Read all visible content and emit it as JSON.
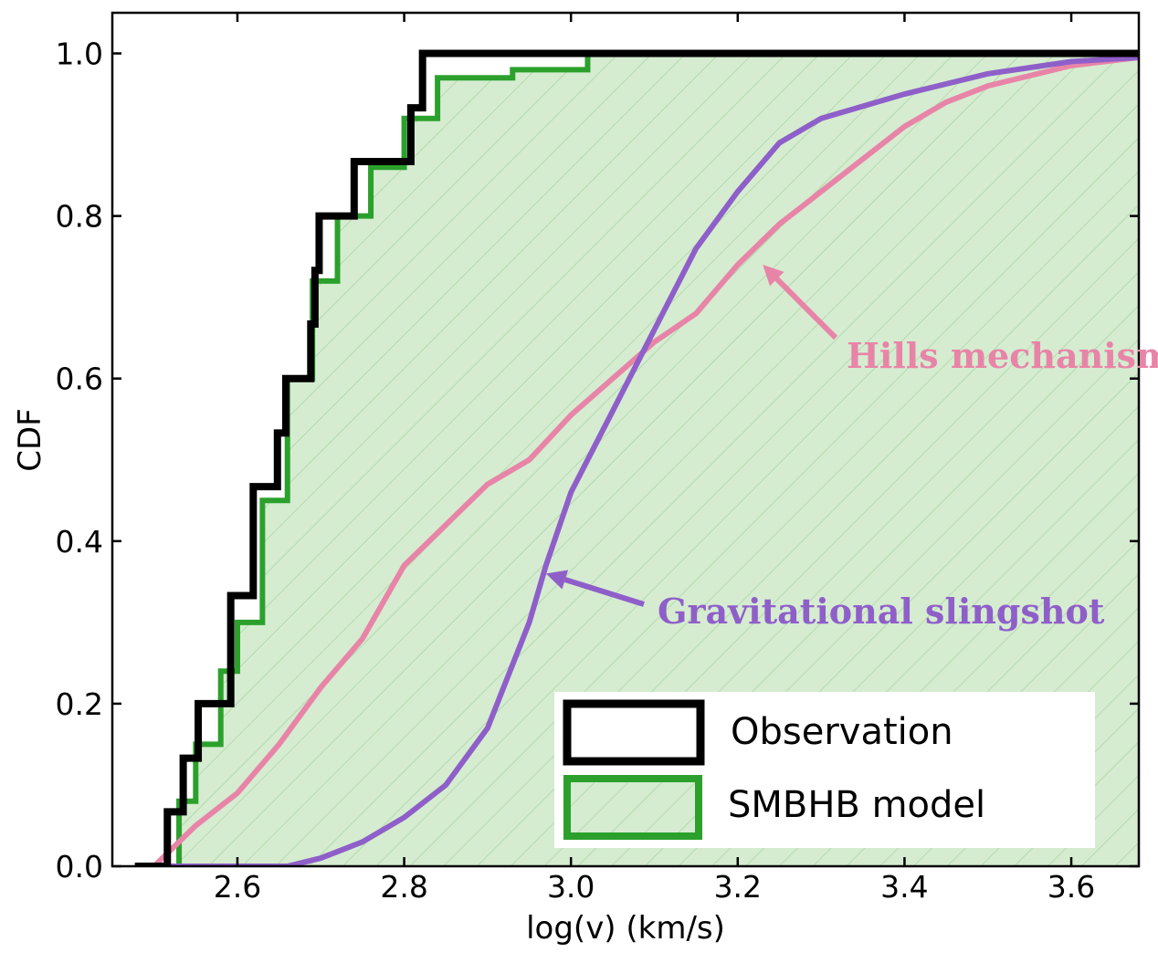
{
  "chart_data": {
    "type": "line",
    "title": "",
    "xlabel": "log(v) (km/s)",
    "ylabel": "CDF",
    "xlim": [
      2.45,
      3.681
    ],
    "ylim": [
      0,
      1.05
    ],
    "xticks": [
      2.6,
      2.8,
      3.0,
      3.2,
      3.4,
      3.6
    ],
    "xtick_labels": [
      "2.6",
      "2.8",
      "3.0",
      "3.2",
      "3.4",
      "3.6"
    ],
    "yticks": [
      0,
      0.2,
      0.4,
      0.6,
      0.8,
      1.0
    ],
    "ytick_labels": [
      "0.0",
      "0.2",
      "0.4",
      "0.6",
      "0.8",
      "1.0"
    ],
    "legend_position": "bottom-right",
    "legend": [
      "Observation",
      "SMBHB model"
    ],
    "series": [
      {
        "name": "Observation",
        "kind": "step",
        "color": "#000000",
        "x": [
          2.477,
          2.516,
          2.535,
          2.553,
          2.592,
          2.619,
          2.648,
          2.658,
          2.688,
          2.693,
          2.698,
          2.74,
          2.808,
          2.822,
          3.681
        ],
        "y": [
          0,
          0.067,
          0.133,
          0.2,
          0.333,
          0.467,
          0.533,
          0.6,
          0.667,
          0.733,
          0.8,
          0.867,
          0.933,
          1.0,
          1.0
        ]
      },
      {
        "name": "SMBHB model",
        "kind": "filled",
        "color": "#2ca02c",
        "fill": "#d5ecd1",
        "x": [
          2.51,
          2.53,
          2.55,
          2.58,
          2.6,
          2.63,
          2.66,
          2.69,
          2.72,
          2.76,
          2.8,
          2.84,
          2.93,
          3.02,
          3.681
        ],
        "y": [
          0,
          0.08,
          0.15,
          0.24,
          0.3,
          0.45,
          0.6,
          0.72,
          0.8,
          0.86,
          0.92,
          0.97,
          0.98,
          1.0,
          1.0
        ]
      },
      {
        "name": "Hills mechanism",
        "kind": "line",
        "color": "#e884a7",
        "x": [
          2.5,
          2.55,
          2.6,
          2.65,
          2.7,
          2.75,
          2.8,
          2.85,
          2.9,
          2.95,
          3.0,
          3.05,
          3.1,
          3.15,
          3.2,
          3.25,
          3.3,
          3.35,
          3.4,
          3.45,
          3.5,
          3.6,
          3.681
        ],
        "y": [
          0,
          0.05,
          0.09,
          0.15,
          0.22,
          0.28,
          0.37,
          0.42,
          0.47,
          0.5,
          0.555,
          0.6,
          0.645,
          0.68,
          0.74,
          0.79,
          0.83,
          0.87,
          0.91,
          0.94,
          0.96,
          0.985,
          0.995
        ]
      },
      {
        "name": "Gravitational slingshot",
        "kind": "line",
        "color": "#8f5fc9",
        "x": [
          2.5,
          2.66,
          2.7,
          2.75,
          2.8,
          2.85,
          2.9,
          2.95,
          2.97,
          3.0,
          3.05,
          3.1,
          3.15,
          3.2,
          3.25,
          3.3,
          3.4,
          3.5,
          3.6,
          3.681
        ],
        "y": [
          0,
          0,
          0.01,
          0.03,
          0.06,
          0.1,
          0.17,
          0.3,
          0.37,
          0.46,
          0.56,
          0.66,
          0.76,
          0.83,
          0.89,
          0.92,
          0.95,
          0.975,
          0.99,
          0.995
        ]
      }
    ],
    "annotations": [
      {
        "text": "Hills mechanism",
        "color": "#e884a7",
        "points_to": [
          3.23,
          0.74
        ]
      },
      {
        "text": "Gravitational slingshot",
        "color": "#8f5fc9",
        "points_to": [
          2.97,
          0.36
        ]
      }
    ]
  }
}
